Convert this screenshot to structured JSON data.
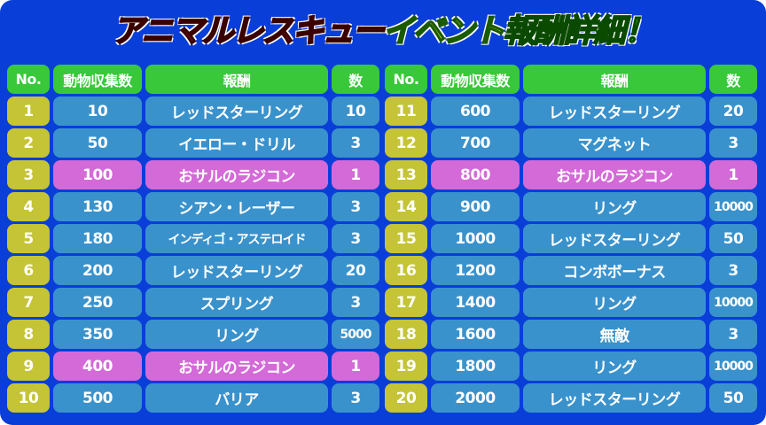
{
  "title": {
    "part1": "アニマルレスキュー",
    "part2": "イベント",
    "part3": "報酬詳細！"
  },
  "headers": [
    "No.",
    "動物収集数",
    "報酬",
    "数"
  ],
  "colors": {
    "background": "#0a3ed8",
    "header": "#38c83a",
    "number": "#c4c436",
    "normal": "#3a92cc",
    "highlight": "#d46ad8"
  },
  "rows": [
    {
      "no": "1",
      "count": "10",
      "reward": "レッドスターリング",
      "qty": "10",
      "highlight": false
    },
    {
      "no": "2",
      "count": "50",
      "reward": "イエロー・ドリル",
      "qty": "3",
      "highlight": false
    },
    {
      "no": "3",
      "count": "100",
      "reward": "おサルのラジコン",
      "qty": "1",
      "highlight": true
    },
    {
      "no": "4",
      "count": "130",
      "reward": "シアン・レーザー",
      "qty": "3",
      "highlight": false
    },
    {
      "no": "5",
      "count": "180",
      "reward": "インディゴ・アステロイド",
      "qty": "3",
      "highlight": false
    },
    {
      "no": "6",
      "count": "200",
      "reward": "レッドスターリング",
      "qty": "20",
      "highlight": false
    },
    {
      "no": "7",
      "count": "250",
      "reward": "スプリング",
      "qty": "3",
      "highlight": false
    },
    {
      "no": "8",
      "count": "350",
      "reward": "リング",
      "qty": "5000",
      "highlight": false
    },
    {
      "no": "9",
      "count": "400",
      "reward": "おサルのラジコン",
      "qty": "1",
      "highlight": true
    },
    {
      "no": "10",
      "count": "500",
      "reward": "バリア",
      "qty": "3",
      "highlight": false
    },
    {
      "no": "11",
      "count": "600",
      "reward": "レッドスターリング",
      "qty": "20",
      "highlight": false
    },
    {
      "no": "12",
      "count": "700",
      "reward": "マグネット",
      "qty": "3",
      "highlight": false
    },
    {
      "no": "13",
      "count": "800",
      "reward": "おサルのラジコン",
      "qty": "1",
      "highlight": true
    },
    {
      "no": "14",
      "count": "900",
      "reward": "リング",
      "qty": "10000",
      "highlight": false
    },
    {
      "no": "15",
      "count": "1000",
      "reward": "レッドスターリング",
      "qty": "50",
      "highlight": false
    },
    {
      "no": "16",
      "count": "1200",
      "reward": "コンボボーナス",
      "qty": "3",
      "highlight": false
    },
    {
      "no": "17",
      "count": "1400",
      "reward": "リング",
      "qty": "10000",
      "highlight": false
    },
    {
      "no": "18",
      "count": "1600",
      "reward": "無敵",
      "qty": "3",
      "highlight": false
    },
    {
      "no": "19",
      "count": "1800",
      "reward": "リング",
      "qty": "10000",
      "highlight": false
    },
    {
      "no": "20",
      "count": "2000",
      "reward": "レッドスターリング",
      "qty": "50",
      "highlight": false
    }
  ]
}
